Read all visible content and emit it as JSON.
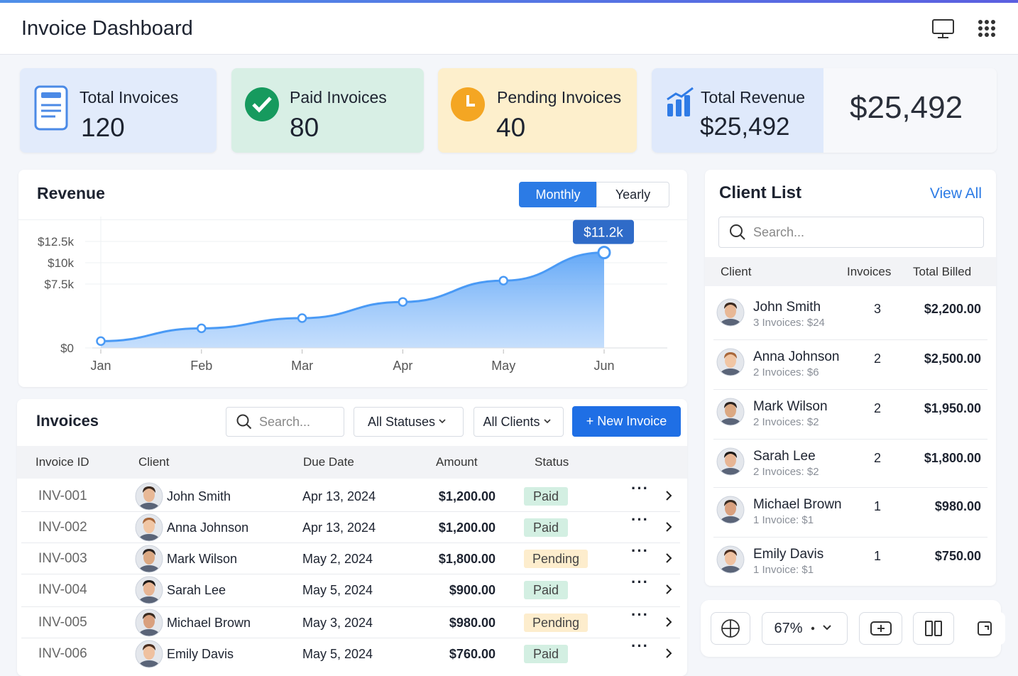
{
  "header": {
    "title": "Invoice Dashboard"
  },
  "stats": [
    {
      "label": "Total Invoices",
      "value": 120
    },
    {
      "label": "Paid Invoices",
      "value": 80
    },
    {
      "label": "Pending Invoices",
      "value": 40
    },
    {
      "label": "Total Revenue",
      "value": "$25,492",
      "highlight": "$25,492"
    }
  ],
  "revenue": {
    "title": "Revenue",
    "toggle": [
      "Monthly",
      "Yearly"
    ],
    "chart_data": {
      "type": "line",
      "categories": [
        "Jan",
        "Feb",
        "Mar",
        "Apr",
        "May",
        "Jun"
      ],
      "values": [
        800,
        2300,
        3500,
        5400,
        7900,
        11200
      ],
      "annotation": "$11.2k",
      "color": "#4a9af5",
      "ylim": [
        0,
        12500
      ],
      "yticks": [
        {
          "value": 0,
          "label": "$0"
        },
        {
          "value": 7500,
          "label": "$7.5k"
        },
        {
          "value": 10000,
          "label": "$10k"
        },
        {
          "value": 12500,
          "label": "$12.5k"
        }
      ],
      "grid": true
    }
  },
  "invoices": {
    "title": "Invoices",
    "search": "Search...",
    "filters": [
      "All Statuses",
      "All Clients"
    ],
    "new_button": "+ New Invoice",
    "columns": [
      "Invoice ID",
      "Client",
      "Due Date",
      "Amount",
      "Status"
    ],
    "rows": [
      [
        "INV-001",
        "John Smith",
        "Apr 13, 2024",
        "$1,200.00",
        "Paid"
      ],
      [
        "INV-002",
        "Anna Johnson",
        "Apr 13, 2024",
        "$1,200.00",
        "Paid"
      ],
      [
        "INV-003",
        "Mark Wilson",
        "May 2, 2024",
        "$1,800.00",
        "Pending"
      ],
      [
        "INV-004",
        "Sarah Lee",
        "May 5, 2024",
        "$900.00",
        "Paid"
      ],
      [
        "INV-005",
        "Michael Brown",
        "May 3, 2024",
        "$980.00",
        "Pending"
      ],
      [
        "INV-006",
        "Emily Davis",
        "May 5, 2024",
        "$760.00",
        "Paid"
      ]
    ],
    "status_colors": {
      "Paid": "#d3efe2",
      "Pending": "#fdedcd"
    }
  },
  "clients": {
    "title": "Client List",
    "view_all": "View All",
    "search": "Search...",
    "columns": [
      "Client",
      "Invoices",
      "Total Billed"
    ],
    "rows": [
      {
        "name": "John Smith",
        "summary": "3 Invoices: $24",
        "invoices": 3,
        "total": "$2,200.00"
      },
      {
        "name": "Anna Johnson",
        "summary": "2 Invoices: $6",
        "invoices": 2,
        "total": "$2,500.00"
      },
      {
        "name": "Mark Wilson",
        "summary": "2 Invoices: $2",
        "invoices": 2,
        "total": "$1,950.00"
      },
      {
        "name": "Sarah Lee",
        "summary": "2 Invoices: $2",
        "invoices": 2,
        "total": "$1,800.00"
      },
      {
        "name": "Michael Brown",
        "summary": "1 Invoice: $1",
        "invoices": 1,
        "total": "$980.00"
      },
      {
        "name": "Emily Davis",
        "summary": "1 Invoice: $1",
        "invoices": 1,
        "total": "$750.00"
      }
    ]
  },
  "toolbar": {
    "zoom": "67%"
  }
}
